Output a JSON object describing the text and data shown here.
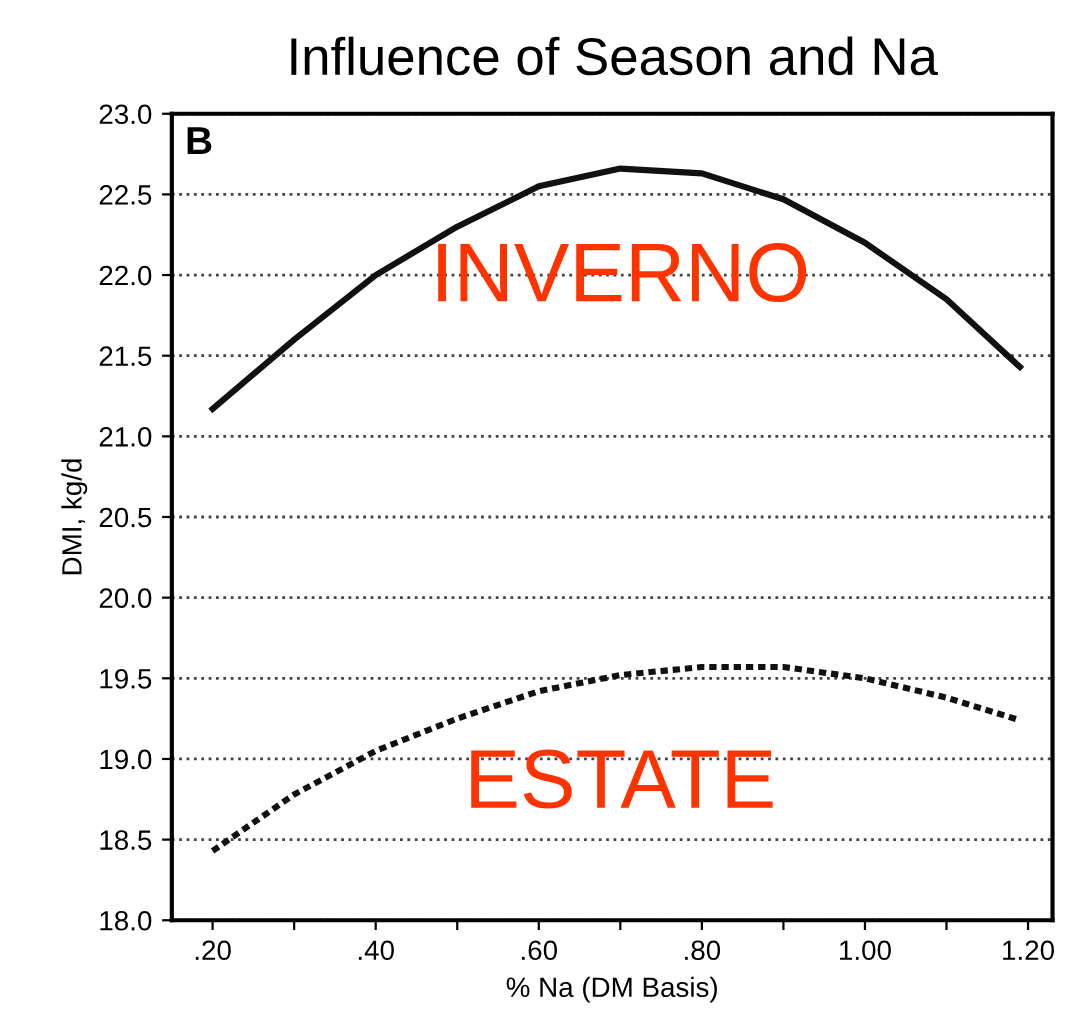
{
  "chart_data": {
    "type": "line",
    "title": "Influence of Season and Na",
    "xlabel": "% Na (DM Basis)",
    "ylabel": "DMI, kg/d",
    "annotations": [
      "B"
    ],
    "x": [
      0.2,
      0.3,
      0.4,
      0.5,
      0.6,
      0.7,
      0.8,
      0.9,
      1.0,
      1.1,
      1.19
    ],
    "series": [
      {
        "name": "INVERNO",
        "color": "#111111",
        "line_style": "solid",
        "values": [
          21.17,
          21.6,
          22.0,
          22.3,
          22.55,
          22.66,
          22.63,
          22.47,
          22.2,
          21.85,
          21.43
        ]
      },
      {
        "name": "ESTATE",
        "color": "#111111",
        "line_style": "dashed",
        "values": [
          18.43,
          18.78,
          19.05,
          19.25,
          19.42,
          19.52,
          19.57,
          19.57,
          19.5,
          19.38,
          19.24
        ]
      }
    ],
    "xlim": [
      0.15,
      1.23
    ],
    "ylim": [
      18.0,
      23.0
    ],
    "xticks": [
      {
        "value": 0.2,
        "label": ".20"
      },
      {
        "value": 0.3,
        "label": null
      },
      {
        "value": 0.4,
        "label": ".40"
      },
      {
        "value": 0.5,
        "label": null
      },
      {
        "value": 0.6,
        "label": ".60"
      },
      {
        "value": 0.7,
        "label": null
      },
      {
        "value": 0.8,
        "label": ".80"
      },
      {
        "value": 0.9,
        "label": null
      },
      {
        "value": 1.0,
        "label": "1.00"
      },
      {
        "value": 1.1,
        "label": null
      },
      {
        "value": 1.2,
        "label": "1.20"
      }
    ],
    "yticks": [
      {
        "value": 18.0,
        "label": "18.0"
      },
      {
        "value": 18.5,
        "label": "18.5"
      },
      {
        "value": 19.0,
        "label": "19.0"
      },
      {
        "value": 19.5,
        "label": "19.5"
      },
      {
        "value": 20.0,
        "label": "20.0"
      },
      {
        "value": 20.5,
        "label": "20.5"
      },
      {
        "value": 21.0,
        "label": "21.0"
      },
      {
        "value": 21.5,
        "label": "21.5"
      },
      {
        "value": 22.0,
        "label": "22.0"
      },
      {
        "value": 22.5,
        "label": "22.5"
      },
      {
        "value": 23.0,
        "label": "23.0"
      }
    ],
    "grid": "y",
    "marker": "none",
    "legend": false
  }
}
